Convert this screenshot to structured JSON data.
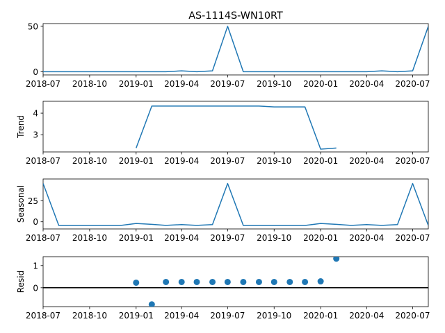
{
  "chart_data": {
    "title": "AS-1114S-WN10RT",
    "x_ticks": [
      "2018-07",
      "2018-10",
      "2019-01",
      "2019-04",
      "2019-07",
      "2019-10",
      "2020-01",
      "2020-04",
      "2020-07"
    ],
    "x_tick_dates": [
      "2018-07-01",
      "2018-10-01",
      "2019-01-01",
      "2019-04-01",
      "2019-07-01",
      "2019-10-01",
      "2020-01-01",
      "2020-04-01",
      "2020-07-01"
    ],
    "xlim": [
      "2018-07-01",
      "2020-08-01"
    ],
    "colors": {
      "line": "#1f77b4",
      "zero_line": "#000000"
    },
    "panels": [
      {
        "name": "observed",
        "type": "line",
        "ylabel": "",
        "ylim": [
          -3.5,
          53
        ],
        "yticks": [
          "0",
          "50"
        ],
        "ytick_values": [
          0,
          50
        ],
        "x": [
          "2018-07-01",
          "2018-08-01",
          "2018-09-01",
          "2018-10-01",
          "2018-11-01",
          "2018-12-01",
          "2019-01-01",
          "2019-02-01",
          "2019-03-01",
          "2019-04-01",
          "2019-05-01",
          "2019-06-01",
          "2019-07-01",
          "2019-08-01",
          "2019-09-01",
          "2019-10-01",
          "2019-11-01",
          "2019-12-01",
          "2020-01-01",
          "2020-02-01",
          "2020-03-01",
          "2020-04-01",
          "2020-05-01",
          "2020-06-01",
          "2020-07-01",
          "2020-08-01"
        ],
        "y": [
          0,
          0,
          0,
          0,
          0,
          0,
          0,
          0,
          0,
          1,
          0,
          1,
          50,
          0,
          0,
          0,
          0,
          0,
          0,
          0,
          0,
          0,
          1,
          0,
          1,
          50
        ]
      },
      {
        "name": "trend",
        "type": "line",
        "ylabel": "Trend",
        "ylim": [
          2.2,
          4.55
        ],
        "yticks": [
          "3",
          "4"
        ],
        "ytick_values": [
          3,
          4
        ],
        "x": [
          "2019-01-01",
          "2019-02-01",
          "2019-03-01",
          "2019-04-01",
          "2019-05-01",
          "2019-06-01",
          "2019-07-01",
          "2019-08-01",
          "2019-09-01",
          "2019-10-01",
          "2019-11-01",
          "2019-12-01",
          "2020-01-01",
          "2020-02-01"
        ],
        "y": [
          2.38,
          4.33,
          4.33,
          4.33,
          4.33,
          4.33,
          4.33,
          4.33,
          4.33,
          4.29,
          4.29,
          4.29,
          2.33,
          2.38
        ]
      },
      {
        "name": "seasonal",
        "type": "line",
        "ylabel": "Seasonal",
        "ylim": [
          -8.5,
          51
        ],
        "yticks": [
          "0",
          "25"
        ],
        "ytick_values": [
          0,
          25
        ],
        "x": [
          "2018-07-01",
          "2018-08-01",
          "2018-09-01",
          "2018-10-01",
          "2018-11-01",
          "2018-12-01",
          "2019-01-01",
          "2019-02-01",
          "2019-03-01",
          "2019-04-01",
          "2019-05-01",
          "2019-06-01",
          "2019-07-01",
          "2019-08-01",
          "2019-09-01",
          "2019-10-01",
          "2019-11-01",
          "2019-12-01",
          "2020-01-01",
          "2020-02-01",
          "2020-03-01",
          "2020-04-01",
          "2020-05-01",
          "2020-06-01",
          "2020-07-01",
          "2020-08-01"
        ],
        "y": [
          45.6,
          -4.4,
          -4.4,
          -4.4,
          -4.4,
          -4.4,
          -2.0,
          -3.0,
          -4.3,
          -3.3,
          -4.3,
          -3.3,
          45.6,
          -4.4,
          -4.4,
          -4.4,
          -4.4,
          -4.4,
          -2.0,
          -3.0,
          -4.3,
          -3.3,
          -4.3,
          -3.3,
          45.6,
          -4.4
        ]
      },
      {
        "name": "resid",
        "type": "scatter",
        "ylabel": "Resid",
        "ylim": [
          -0.85,
          1.4
        ],
        "yticks": [
          "0",
          "1"
        ],
        "ytick_values": [
          0,
          1
        ],
        "zero_line": 0,
        "x": [
          "2019-01-01",
          "2019-02-01",
          "2019-03-01",
          "2019-04-01",
          "2019-05-01",
          "2019-06-01",
          "2019-07-01",
          "2019-08-01",
          "2019-09-01",
          "2019-10-01",
          "2019-11-01",
          "2019-12-01",
          "2020-01-01",
          "2020-02-01"
        ],
        "y": [
          0.23,
          -0.75,
          0.26,
          0.26,
          0.26,
          0.26,
          0.26,
          0.26,
          0.26,
          0.26,
          0.26,
          0.26,
          0.29,
          1.31
        ]
      }
    ]
  }
}
